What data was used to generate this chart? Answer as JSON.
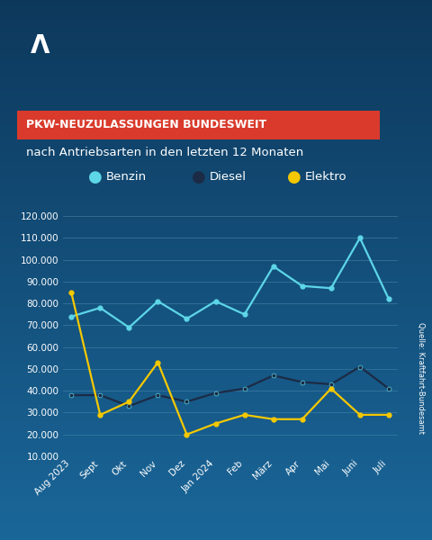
{
  "title_red": "PKW-NEUZULASSUNGEN BUNDESWEIT",
  "subtitle": "nach Antriebsarten in den letzten 12 Monaten",
  "source": "Quelle: Kraftfahrt-Bundesamt",
  "categories": [
    "Aug 2023",
    "Sept",
    "Okt",
    "Nov",
    "Dez",
    "Jan 2024",
    "Feb",
    "März",
    "Apr",
    "Mai",
    "Juni",
    "Juli"
  ],
  "benzin": [
    74000,
    78000,
    69000,
    81000,
    73000,
    81000,
    75000,
    97000,
    88000,
    87000,
    110000,
    82000
  ],
  "diesel": [
    38000,
    38000,
    33000,
    38000,
    35000,
    39000,
    41000,
    47000,
    44000,
    43000,
    51000,
    41000
  ],
  "elektro": [
    85000,
    29000,
    35000,
    53000,
    20000,
    25000,
    29000,
    27000,
    27000,
    41000,
    29000,
    29000
  ],
  "benzin_color": "#5dd6e8",
  "diesel_color": "#1c2b45",
  "elektro_color": "#f5c800",
  "bg_color_top": "#0d3a5c",
  "bg_color": "#0d5070",
  "grid_color": "#4a8aaa",
  "text_color": "#ffffff",
  "red_bg": "#d93a2b",
  "ylim_min": 10000,
  "ylim_max": 125000,
  "yticks": [
    10000,
    20000,
    30000,
    40000,
    50000,
    60000,
    70000,
    80000,
    90000,
    100000,
    110000,
    120000
  ],
  "legend_labels": [
    "Benzin",
    "Diesel",
    "Elektro"
  ]
}
